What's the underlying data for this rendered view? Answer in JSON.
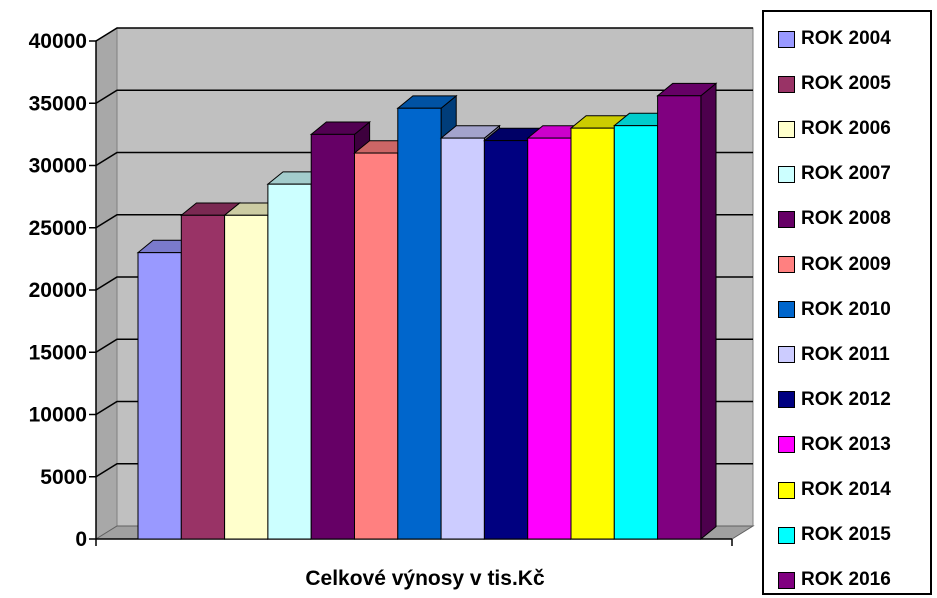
{
  "chart_data": {
    "type": "bar",
    "title": "",
    "xlabel": "Celkové výnosy v tis.Kč",
    "ylabel": "",
    "ylim": [
      0,
      40000
    ],
    "yticks": [
      0,
      5000,
      10000,
      15000,
      20000,
      25000,
      30000,
      35000,
      40000
    ],
    "grid": true,
    "legend_position": "right",
    "three_d": true,
    "series": [
      {
        "name": "ROK 2004",
        "value": 23000,
        "color": "#9999FF"
      },
      {
        "name": "ROK 2005",
        "value": 26000,
        "color": "#993366"
      },
      {
        "name": "ROK 2006",
        "value": 26000,
        "color": "#FFFFCC"
      },
      {
        "name": "ROK 2007",
        "value": 28500,
        "color": "#CCFFFF"
      },
      {
        "name": "ROK 2008",
        "value": 32500,
        "color": "#660066"
      },
      {
        "name": "ROK 2009",
        "value": 31000,
        "color": "#FF8080"
      },
      {
        "name": "ROK 2010",
        "value": 34600,
        "color": "#0066CC"
      },
      {
        "name": "ROK 2011",
        "value": 32200,
        "color": "#CCCCFF"
      },
      {
        "name": "ROK 2012",
        "value": 32000,
        "color": "#000080"
      },
      {
        "name": "ROK 2013",
        "value": 32200,
        "color": "#FF00FF"
      },
      {
        "name": "ROK 2014",
        "value": 33000,
        "color": "#FFFF00"
      },
      {
        "name": "ROK 2015",
        "value": 33200,
        "color": "#00FFFF"
      },
      {
        "name": "ROK 2016",
        "value": 35600,
        "color": "#800080"
      }
    ]
  }
}
